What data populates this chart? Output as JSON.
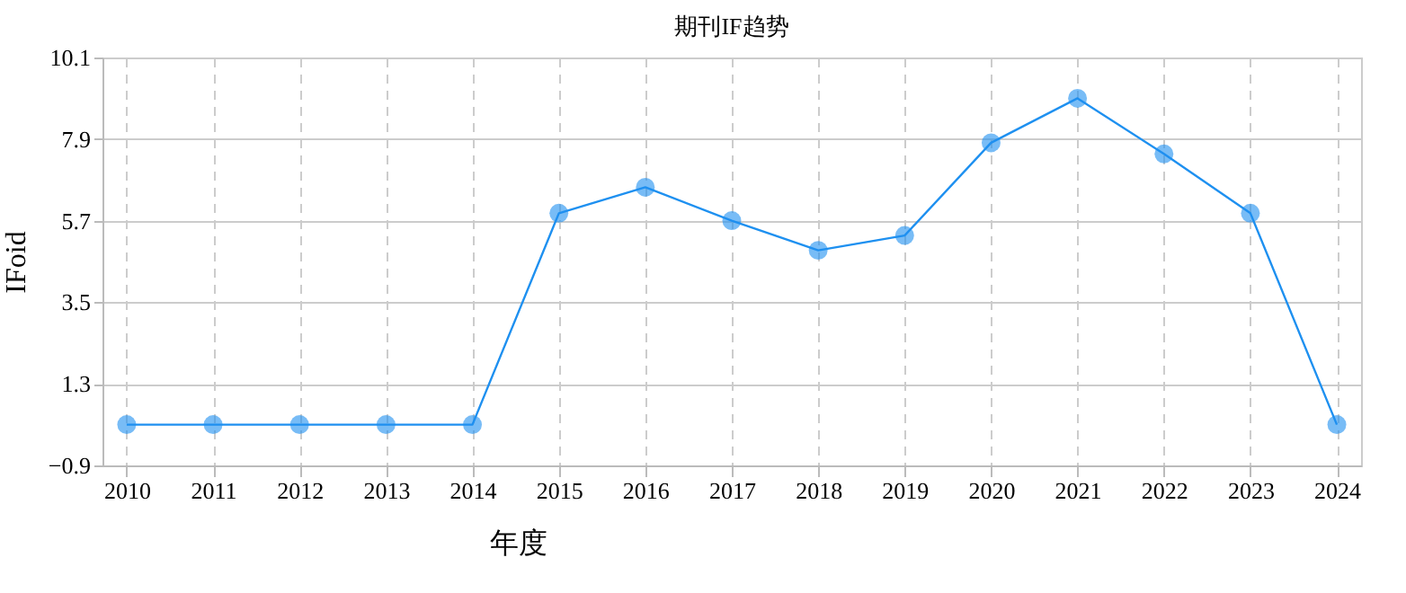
{
  "chart_data": {
    "type": "line",
    "title": "期刊IF趋势",
    "xlabel": "年度",
    "ylabel": "IFoid",
    "categories": [
      "2010",
      "2011",
      "2012",
      "2013",
      "2014",
      "2015",
      "2016",
      "2017",
      "2018",
      "2019",
      "2020",
      "2021",
      "2022",
      "2023",
      "2024"
    ],
    "series": [
      {
        "color": "#1e90f0",
        "values": [
          0.2,
          0.2,
          0.2,
          0.2,
          0.2,
          5.9,
          6.6,
          5.7,
          4.9,
          5.3,
          7.8,
          9.0,
          7.5,
          5.9,
          0.2
        ]
      }
    ],
    "ylim": [
      -0.9,
      10.1
    ],
    "yticks": [
      -0.9,
      1.3,
      3.5,
      5.7,
      7.9,
      10.1
    ],
    "grid": true,
    "marker": "circle",
    "line_style": "solid",
    "legend": false
  }
}
